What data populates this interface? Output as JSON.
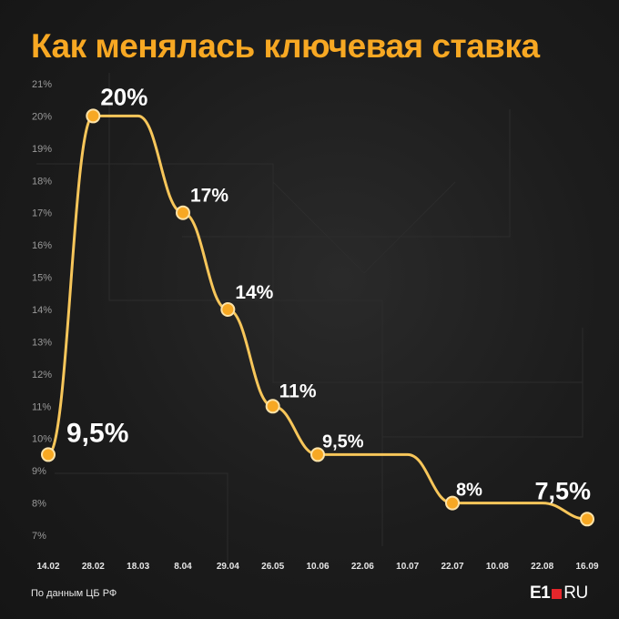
{
  "title": "Как менялась ключевая ставка",
  "source": "По данным ЦБ РФ",
  "logo": {
    "left": "E1",
    "right": "RU"
  },
  "colors": {
    "accent": "#f7a823",
    "line": "#f7c65a",
    "background": "#1b1b1b",
    "text": "#ffffff",
    "logo_square": "#e5262b"
  },
  "chart_data": {
    "type": "line",
    "title": "Как менялась ключевая ставка",
    "xlabel": "",
    "ylabel": "",
    "x_categories": [
      "14.02",
      "28.02",
      "18.03",
      "8.04",
      "29.04",
      "26.05",
      "10.06",
      "22.06",
      "10.07",
      "22.07",
      "10.08",
      "22.08",
      "16.09"
    ],
    "y_ticks": [
      "21%",
      "20%",
      "19%",
      "18%",
      "17%",
      "16%",
      "15%",
      "14%",
      "13%",
      "12%",
      "11%",
      "10%",
      "9%",
      "8%",
      "7%"
    ],
    "ylim": [
      7,
      21
    ],
    "grid": false,
    "legend": "none",
    "series": [
      {
        "points": [
          {
            "x": "14.02",
            "y": 9.5,
            "label": "9,5%"
          },
          {
            "x": "28.02",
            "y": 20,
            "label": "20%"
          },
          {
            "x": "18.03",
            "y": 20,
            "label": ""
          },
          {
            "x": "8.04",
            "y": 17,
            "label": "17%"
          },
          {
            "x": "29.04",
            "y": 14,
            "label": "14%"
          },
          {
            "x": "26.05",
            "y": 11,
            "label": "11%"
          },
          {
            "x": "10.06",
            "y": 9.5,
            "label": "9,5%"
          },
          {
            "x": "22.06",
            "y": 9.5,
            "label": ""
          },
          {
            "x": "10.07",
            "y": 9.5,
            "label": ""
          },
          {
            "x": "22.07",
            "y": 8,
            "label": "8%"
          },
          {
            "x": "10.08",
            "y": 8,
            "label": ""
          },
          {
            "x": "22.08",
            "y": 8,
            "label": ""
          },
          {
            "x": "16.09",
            "y": 7.5,
            "label": "7,5%"
          }
        ]
      }
    ]
  }
}
